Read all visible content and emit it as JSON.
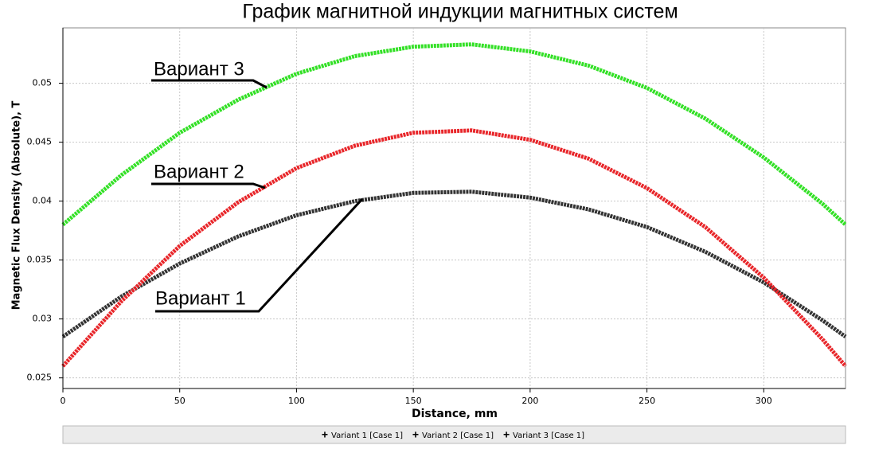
{
  "chart_data": {
    "type": "line",
    "title": "График магнитной индукции магнитных систем",
    "xlabel": "Distance, mm",
    "ylabel": "Magnetic Flux Density (Absolute), T",
    "x": [
      0,
      25,
      50,
      75,
      100,
      125,
      150,
      175,
      200,
      225,
      250,
      275,
      300,
      325,
      335
    ],
    "series": [
      {
        "name": "Variant 1 [Case 1]",
        "color": "#333333",
        "values": [
          0.0285,
          0.0319,
          0.0347,
          0.037,
          0.0388,
          0.04,
          0.0407,
          0.0408,
          0.0403,
          0.0393,
          0.0378,
          0.0357,
          0.0331,
          0.0299,
          0.0285
        ]
      },
      {
        "name": "Variant 2 [Case 1]",
        "color": "#e8262a",
        "values": [
          0.026,
          0.0315,
          0.0362,
          0.0399,
          0.0428,
          0.0447,
          0.0458,
          0.046,
          0.0452,
          0.0436,
          0.0411,
          0.0378,
          0.0335,
          0.0283,
          0.026
        ]
      },
      {
        "name": "Variant 3 [Case 1]",
        "color": "#33e026",
        "values": [
          0.038,
          0.0422,
          0.0458,
          0.0486,
          0.0508,
          0.0523,
          0.0531,
          0.0533,
          0.0527,
          0.0515,
          0.0496,
          0.047,
          0.0437,
          0.0398,
          0.038
        ]
      }
    ],
    "annotations": [
      "Вариант 3",
      "Вариант 2",
      "Вариант 1"
    ],
    "xlim": [
      0,
      335
    ],
    "ylim": [
      0.0241,
      0.0547
    ],
    "xticks": [
      0,
      50,
      100,
      150,
      200,
      250,
      300
    ],
    "yticks": [
      0.025,
      0.03,
      0.035,
      0.04,
      0.045,
      0.05
    ],
    "grid": true
  }
}
